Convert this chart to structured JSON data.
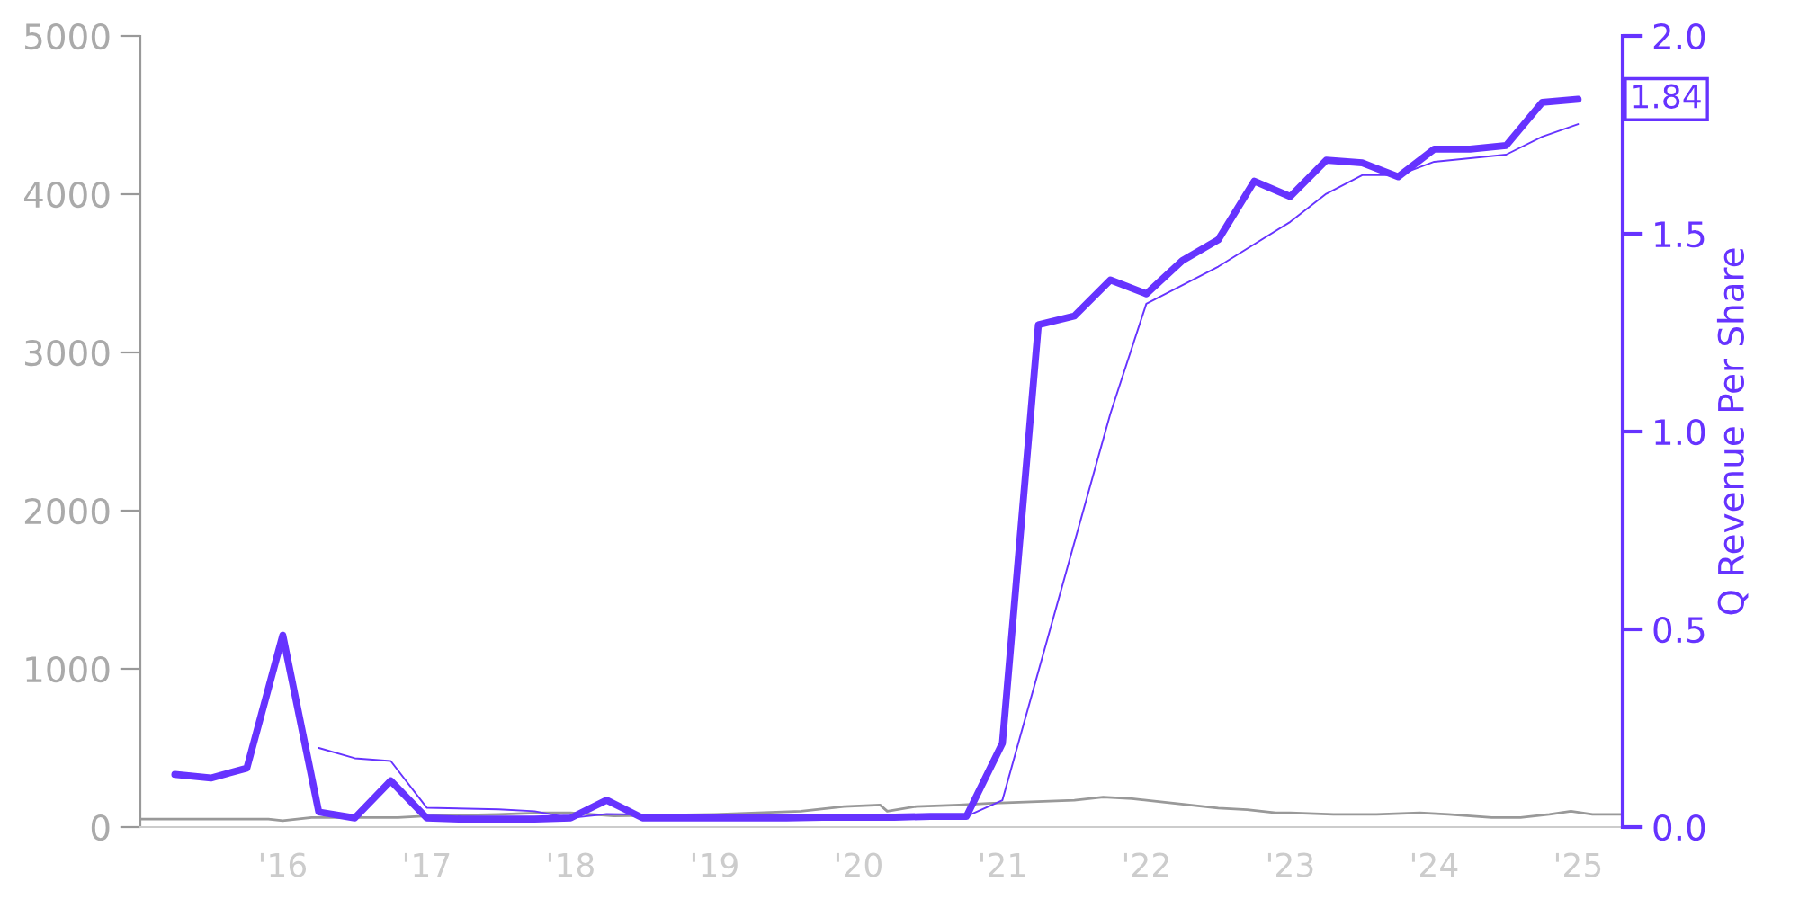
{
  "chart_data": {
    "type": "line",
    "y2label": "Q Revenue Per Share",
    "xlim": [
      2015.01,
      2025.31
    ],
    "xticks": [
      {
        "value": 2016,
        "label": "'16"
      },
      {
        "value": 2017,
        "label": "'17"
      },
      {
        "value": 2018,
        "label": "'18"
      },
      {
        "value": 2019,
        "label": "'19"
      },
      {
        "value": 2020,
        "label": "'20"
      },
      {
        "value": 2021,
        "label": "'21"
      },
      {
        "value": 2022,
        "label": "'22"
      },
      {
        "value": 2023,
        "label": "'23"
      },
      {
        "value": 2024,
        "label": "'24"
      },
      {
        "value": 2025,
        "label": "'25"
      }
    ],
    "ylim": [
      0,
      5000
    ],
    "yticks": [
      0,
      1000,
      2000,
      3000,
      4000,
      5000
    ],
    "y2lim": [
      0,
      2.0
    ],
    "y2ticks": [
      {
        "value": 0,
        "label": "0.0"
      },
      0.5,
      {
        "value": 1,
        "label": "1.0"
      },
      1.5,
      {
        "value": 2,
        "label": "2.0"
      }
    ],
    "grid": false,
    "legend": false,
    "series": [
      {
        "color": "#999999",
        "axis": "y",
        "x": [
          2015.01,
          2015.5,
          2015.9,
          2016.0,
          2016.2,
          2016.5,
          2016.8,
          2017.0,
          2017.5,
          2017.8,
          2018.0,
          2018.3,
          2018.6,
          2018.9,
          2019.0,
          2019.3,
          2019.6,
          2019.9,
          2020.15,
          2020.2,
          2020.4,
          2020.7,
          2020.9,
          2021.2,
          2021.5,
          2021.7,
          2021.9,
          2022.1,
          2022.3,
          2022.5,
          2022.7,
          2022.9,
          2023.0,
          2023.3,
          2023.6,
          2023.9,
          2024.1,
          2024.4,
          2024.6,
          2024.8,
          2024.95,
          2025.1,
          2025.31
        ],
        "values": [
          50,
          50,
          50,
          40,
          60,
          60,
          60,
          70,
          80,
          90,
          90,
          70,
          null,
          null,
          80,
          90,
          100,
          130,
          140,
          100,
          130,
          140,
          150,
          160,
          170,
          190,
          180,
          160,
          140,
          120,
          110,
          90,
          90,
          80,
          80,
          90,
          80,
          60,
          60,
          80,
          100,
          80,
          80
        ]
      },
      {
        "color": "#6633ff",
        "axis": "y2",
        "x": [
          2015.25,
          2015.5,
          2015.75,
          2016.0,
          2016.25,
          2016.5,
          2016.75,
          2017.0,
          2017.25,
          2017.5,
          2017.75,
          2018.0,
          2018.25,
          2018.5,
          2018.75,
          2019.0,
          2019.25,
          2019.5,
          2019.75,
          2020.0,
          2020.25,
          2020.5,
          2020.75,
          2021.0,
          2021.25,
          2021.5,
          2021.75,
          2022.0,
          2022.25,
          2022.5,
          2022.75,
          2023.0,
          2023.25,
          2023.5,
          2023.75,
          2024.0,
          2024.25,
          2024.5,
          2024.75,
          2025.0
        ],
        "values": [
          0.133,
          0.124,
          0.149,
          0.485,
          0.038,
          0.023,
          0.117,
          0.023,
          0.02,
          0.02,
          0.02,
          0.023,
          0.068,
          0.023,
          0.023,
          0.023,
          0.023,
          0.023,
          0.025,
          0.025,
          0.025,
          0.027,
          0.027,
          0.212,
          1.27,
          1.292,
          1.383,
          1.348,
          1.432,
          1.485,
          1.633,
          1.594,
          1.686,
          1.679,
          1.644,
          1.714,
          1.714,
          1.723,
          1.832,
          1.84
        ],
        "value_labels": [
          null,
          null,
          null,
          null,
          null,
          null,
          null,
          null,
          null,
          null,
          null,
          null,
          null,
          null,
          null,
          null,
          null,
          null,
          null,
          null,
          null,
          null,
          null,
          null,
          null,
          null,
          null,
          null,
          null,
          null,
          null,
          null,
          null,
          null,
          null,
          null,
          null,
          null,
          null,
          "1.84"
        ]
      },
      {
        "color": "#6633ff",
        "axis": "y2",
        "x": [
          2016.25,
          2016.5,
          2016.75,
          2017.0,
          2017.5,
          2017.75,
          2018.0,
          2018.25,
          2018.75,
          2019.5,
          2020.0,
          2020.75,
          2021.0,
          2021.75,
          2022.0,
          2022.5,
          2023.0,
          2023.25,
          2023.5,
          2023.75,
          2024.0,
          2024.5,
          2024.75,
          2025.0
        ],
        "values": [
          0.2,
          0.174,
          0.167,
          0.049,
          0.045,
          0.04,
          0.023,
          0.033,
          0.03,
          0.027,
          0.027,
          0.027,
          0.068,
          1.045,
          1.323,
          1.417,
          1.53,
          1.601,
          1.648,
          1.648,
          1.682,
          1.7,
          1.745,
          1.777
        ]
      }
    ]
  }
}
